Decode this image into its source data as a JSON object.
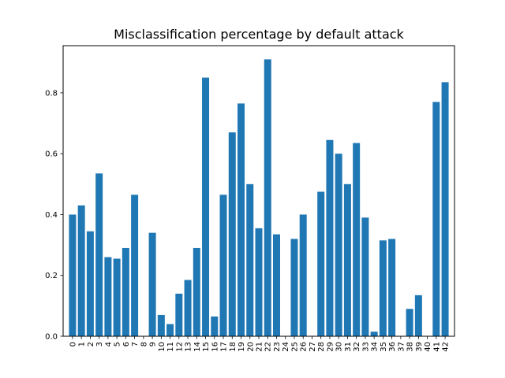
{
  "chart_data": {
    "type": "bar",
    "title": "Misclassification percentage by default attack",
    "xlabel": "",
    "ylabel": "",
    "categories": [
      "0",
      "1",
      "2",
      "3",
      "4",
      "5",
      "6",
      "7",
      "8",
      "9",
      "10",
      "11",
      "12",
      "13",
      "14",
      "15",
      "16",
      "17",
      "18",
      "19",
      "20",
      "21",
      "22",
      "23",
      "24",
      "25",
      "26",
      "27",
      "28",
      "29",
      "30",
      "31",
      "32",
      "33",
      "34",
      "35",
      "36",
      "37",
      "38",
      "39",
      "40",
      "41",
      "42"
    ],
    "values": [
      0.4,
      0.43,
      0.345,
      0.535,
      0.26,
      0.255,
      0.29,
      0.465,
      0.0,
      0.34,
      0.07,
      0.04,
      0.14,
      0.185,
      0.29,
      0.85,
      0.065,
      0.465,
      0.67,
      0.765,
      0.5,
      0.355,
      0.91,
      0.335,
      0.0,
      0.32,
      0.4,
      0.0,
      0.475,
      0.645,
      0.6,
      0.5,
      0.635,
      0.39,
      0.015,
      0.315,
      0.32,
      0.0,
      0.09,
      0.135,
      0.0,
      0.77,
      0.835
    ],
    "yticks": [
      "0.0",
      "0.2",
      "0.4",
      "0.6",
      "0.8"
    ],
    "ylim": [
      0,
      0.955
    ],
    "grid": false,
    "bar_color": "#1f77b4"
  }
}
